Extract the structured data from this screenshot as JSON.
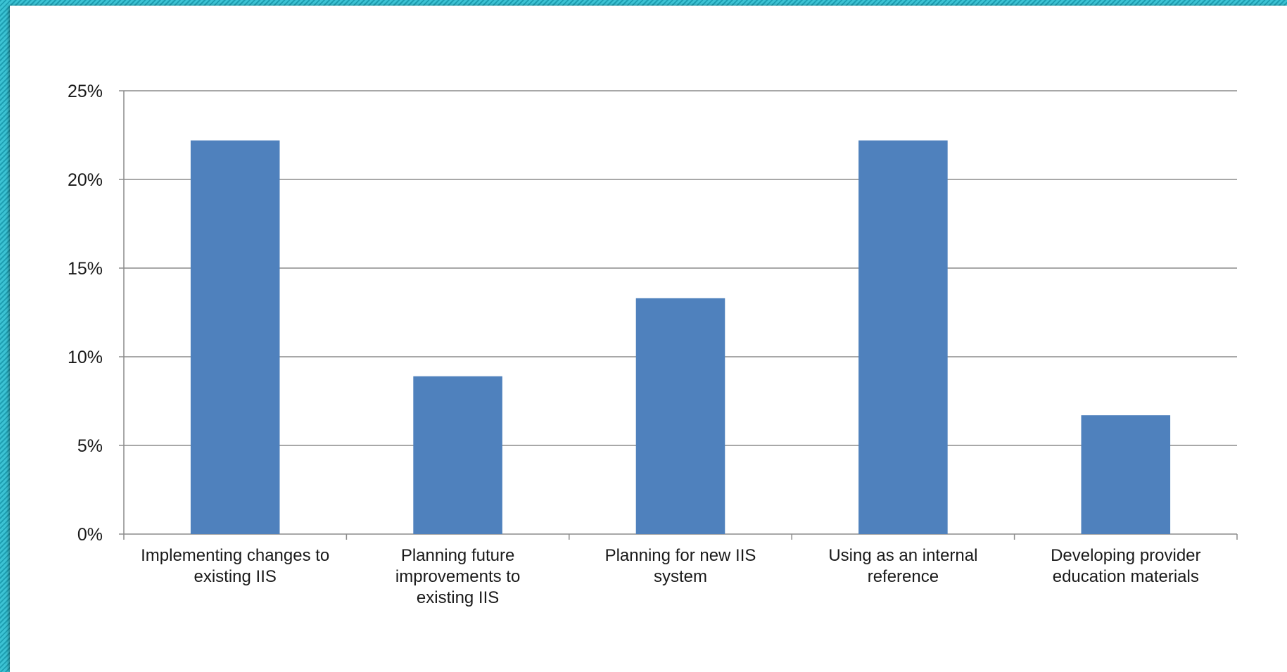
{
  "chart_data": {
    "type": "bar",
    "title": "",
    "xlabel": "",
    "ylabel": "",
    "categories": [
      "Implementing changes to existing IIS",
      "Planning future improvements to existing IIS",
      "Planning for new IIS system",
      "Using as an internal reference",
      "Developing provider education  materials"
    ],
    "category_lines": [
      [
        "Implementing changes to",
        "existing IIS"
      ],
      [
        "Planning future",
        "improvements to",
        "existing IIS"
      ],
      [
        "Planning for new IIS",
        "system"
      ],
      [
        "Using as an internal",
        "reference"
      ],
      [
        "Developing provider",
        "education  materials"
      ]
    ],
    "values": [
      22.2,
      8.9,
      13.3,
      22.2,
      6.7
    ],
    "ylim": [
      0,
      25
    ],
    "yticks": [
      0,
      5,
      10,
      15,
      20,
      25
    ],
    "ytick_labels": [
      "0%",
      "5%",
      "10%",
      "15%",
      "20%",
      "25%"
    ],
    "grid": true,
    "legend": "none",
    "bar_color": "#4f81bd",
    "grid_color": "#8c8c8c",
    "axis_color": "#8c8c8c"
  },
  "colors": {
    "frame_teal": "#2bb0c2",
    "background": "#ffffff"
  }
}
